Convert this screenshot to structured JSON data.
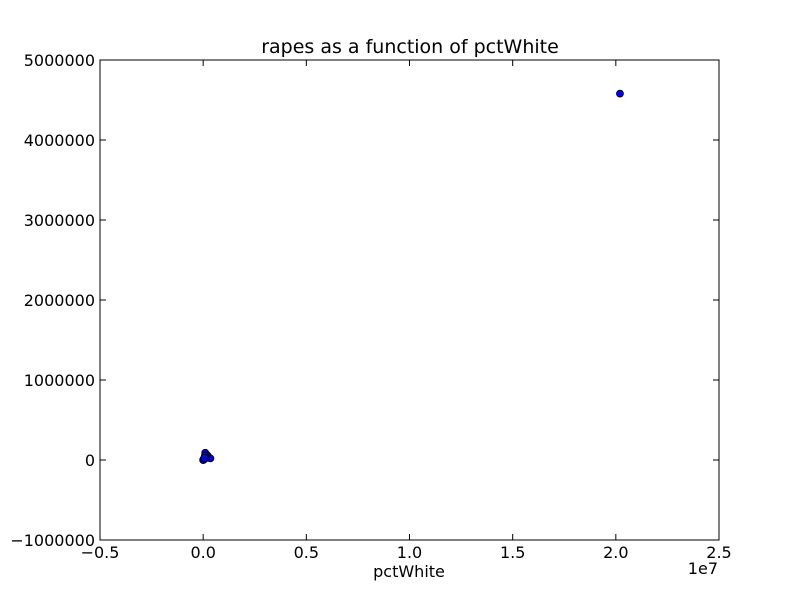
{
  "chart_data": {
    "type": "scatter",
    "title": "rapes as a function of pctWhite",
    "xlabel": "pctWhite",
    "ylabel": "",
    "x_offset_label": "1e7",
    "xlim": [
      -5000000,
      25000000
    ],
    "ylim": [
      -1000000,
      5000000
    ],
    "x_ticks": [
      -5000000,
      0,
      5000000,
      10000000,
      15000000,
      20000000,
      25000000
    ],
    "x_tick_labels": [
      "−0.5",
      "0.0",
      "0.5",
      "1.0",
      "1.5",
      "2.0",
      "2.5"
    ],
    "y_ticks": [
      -1000000,
      0,
      1000000,
      2000000,
      3000000,
      4000000,
      5000000
    ],
    "y_tick_labels": [
      "−1000000",
      "0",
      "1000000",
      "2000000",
      "3000000",
      "4000000",
      "5000000"
    ],
    "grid": false,
    "marker_color": "#0000ff",
    "marker_edge": "#000000",
    "points": [
      {
        "x": 20200000,
        "y": 4580000
      },
      {
        "x": 100000,
        "y": 90000
      },
      {
        "x": 200000,
        "y": 60000
      },
      {
        "x": 250000,
        "y": 40000
      },
      {
        "x": 350000,
        "y": 20000
      },
      {
        "x": 150000,
        "y": 30000
      },
      {
        "x": 50000,
        "y": 10000
      },
      {
        "x": 20000,
        "y": 5000
      },
      {
        "x": 10000,
        "y": 2000
      },
      {
        "x": 5000,
        "y": 1000
      },
      {
        "x": 0,
        "y": 0
      },
      {
        "x": 30000,
        "y": 15000
      },
      {
        "x": 80000,
        "y": 50000
      },
      {
        "x": 120000,
        "y": 20000
      },
      {
        "x": 60000,
        "y": 25000
      }
    ]
  }
}
